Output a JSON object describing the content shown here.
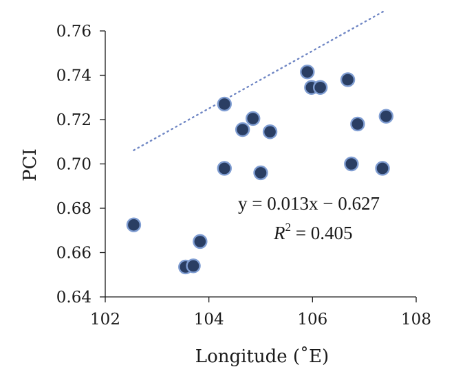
{
  "chart_data": {
    "type": "scatter",
    "title": "",
    "xlabel": "Longitude (˚E)",
    "ylabel": "PCI",
    "xlim": [
      102,
      108
    ],
    "ylim": [
      0.64,
      0.76
    ],
    "x_ticks": [
      "102",
      "104",
      "106",
      "108"
    ],
    "y_ticks": [
      "0.64",
      "0.66",
      "0.68",
      "0.70",
      "0.72",
      "0.74",
      "0.76"
    ],
    "grid": false,
    "marker_color": "#2a3e63",
    "marker_edge_color": "#7f9dd2",
    "trendline_color": "#6f86c4",
    "series": [
      {
        "points": [
          {
            "x": 102.55,
            "y": 0.6725
          },
          {
            "x": 103.55,
            "y": 0.6535
          },
          {
            "x": 103.7,
            "y": 0.654
          },
          {
            "x": 103.83,
            "y": 0.665
          },
          {
            "x": 104.3,
            "y": 0.727
          },
          {
            "x": 104.3,
            "y": 0.698
          },
          {
            "x": 104.65,
            "y": 0.7155
          },
          {
            "x": 104.85,
            "y": 0.7205
          },
          {
            "x": 105.0,
            "y": 0.696
          },
          {
            "x": 105.18,
            "y": 0.7145
          },
          {
            "x": 105.9,
            "y": 0.7415
          },
          {
            "x": 105.98,
            "y": 0.7345
          },
          {
            "x": 106.15,
            "y": 0.7345
          },
          {
            "x": 106.68,
            "y": 0.738
          },
          {
            "x": 106.75,
            "y": 0.7
          },
          {
            "x": 106.87,
            "y": 0.718
          },
          {
            "x": 107.35,
            "y": 0.698
          },
          {
            "x": 107.42,
            "y": 0.7215
          }
        ]
      }
    ],
    "trendline": {
      "equation": "y = 0.013x − 0.627",
      "r2_label": "R",
      "r2_exponent": "2",
      "r2_value": " = 0.405",
      "x_start": 102.55,
      "x_end": 107.42
    }
  }
}
